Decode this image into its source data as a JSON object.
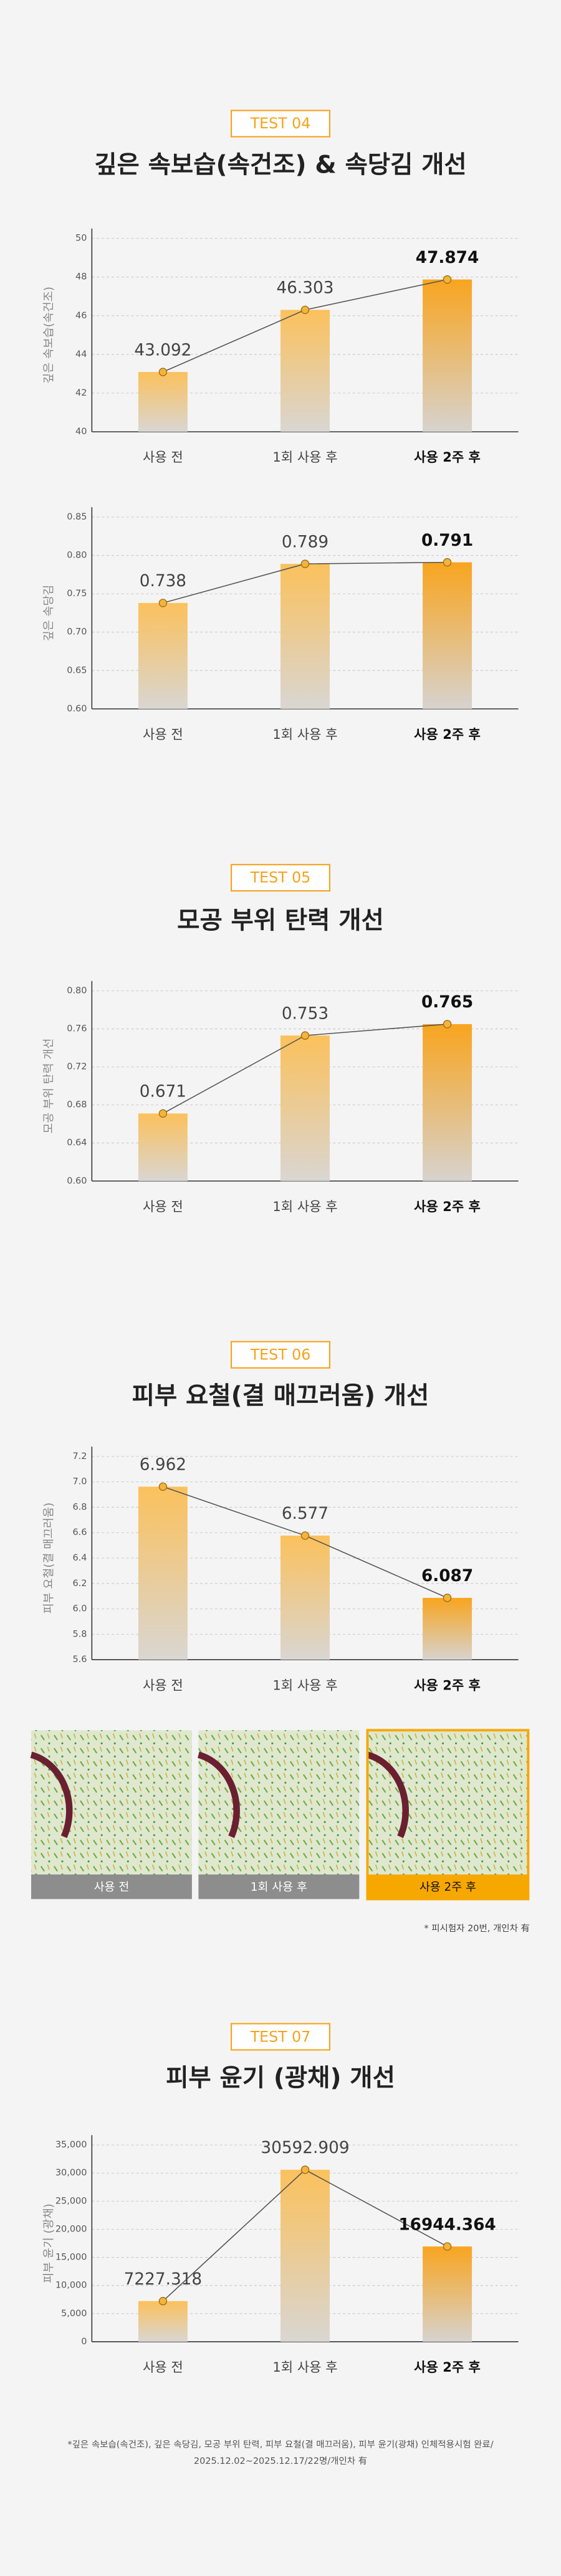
{
  "sections": [
    {
      "badge": "TEST 04",
      "title": "깊은 속보습(속건조) & 속당김 개선"
    },
    {
      "badge": "TEST 05",
      "title": "모공 부위 탄력 개선"
    },
    {
      "badge": "TEST 06",
      "title": "피부 요철(결 매끄러움) 개선"
    },
    {
      "badge": "TEST 07",
      "title": "피부 윤기 (광채) 개선"
    }
  ],
  "chart_data": [
    {
      "type": "bar",
      "y_label": "깊은 속보습(속건조)",
      "categories": [
        "사용 전",
        "1회 사용 후",
        "사용 2주 후"
      ],
      "values": [
        43.092,
        46.303,
        47.874
      ],
      "color": "#f7a21b",
      "ylim": [
        40,
        50
      ],
      "yticks": [
        40,
        42,
        44,
        46,
        48,
        50
      ],
      "grid": true
    },
    {
      "type": "bar",
      "y_label": "깊은 속당김",
      "categories": [
        "사용 전",
        "1회 사용 후",
        "사용 2주 후"
      ],
      "values": [
        0.738,
        0.789,
        0.791
      ],
      "color": "#f7a21b",
      "ylim": [
        0.6,
        0.85
      ],
      "yticks": [
        {
          "value": 0.6,
          "label": "0.60"
        },
        0.65,
        {
          "value": 0.7,
          "label": "0.70"
        },
        0.75,
        {
          "value": 0.8,
          "label": "0.80"
        },
        0.85
      ],
      "grid": true
    },
    {
      "type": "bar",
      "y_label": "모공 부위 탄력 개선",
      "categories": [
        "사용 전",
        "1회 사용 후",
        "사용 2주 후"
      ],
      "values": [
        0.671,
        0.753,
        0.765
      ],
      "color": "#f7a21b",
      "ylim": [
        0.6,
        0.8
      ],
      "yticks": [
        {
          "value": 0.6,
          "label": "0.60"
        },
        0.64,
        0.68,
        0.72,
        0.76,
        {
          "value": 0.8,
          "label": "0.80"
        }
      ],
      "grid": true
    },
    {
      "type": "bar",
      "y_label": "피부 요철(결 매끄러움)",
      "categories": [
        "사용 전",
        "1회 사용 후",
        "사용 2주 후"
      ],
      "values": [
        6.962,
        6.577,
        6.087
      ],
      "color": "#f7a21b",
      "ylim": [
        5.6,
        7.2
      ],
      "yticks": [
        5.6,
        5.8,
        {
          "value": 6,
          "label": "6.0"
        },
        6.2,
        6.4,
        6.6,
        6.8,
        {
          "value": 7,
          "label": "7.0"
        },
        7.2
      ],
      "grid": true
    },
    {
      "type": "bar",
      "y_label": "피부 윤기 (광채)",
      "categories": [
        "사용 전",
        "1회 사용 후",
        "사용 2주 후"
      ],
      "values": [
        7227.318,
        30592.909,
        16944.364
      ],
      "color": "#f7a21b",
      "ylim": [
        0,
        35000
      ],
      "yticks": [
        0,
        {
          "value": 5000,
          "label": "5,000"
        },
        {
          "value": 10000,
          "label": "10,000"
        },
        {
          "value": 15000,
          "label": "15,000"
        },
        {
          "value": 20000,
          "label": "20,000"
        },
        {
          "value": 25000,
          "label": "25,000"
        },
        {
          "value": 30000,
          "label": "30,000"
        },
        {
          "value": 35000,
          "label": "35,000"
        }
      ],
      "grid": true
    }
  ],
  "photos": {
    "labels": [
      "사용 전",
      "1회 사용 후",
      "사용 2주 후"
    ],
    "note": "* 피시험자 20번, 개인차 有"
  },
  "footnote": [
    "*깊은 속보습(속건조), 깊은 속당김, 모공 부위 탄력, 피부 요철(결 매끄러움), 피부 윤기(광채) 인체적용시험 완료/",
    "2025.12.02~2025.12.17/22명/개인차 有"
  ]
}
